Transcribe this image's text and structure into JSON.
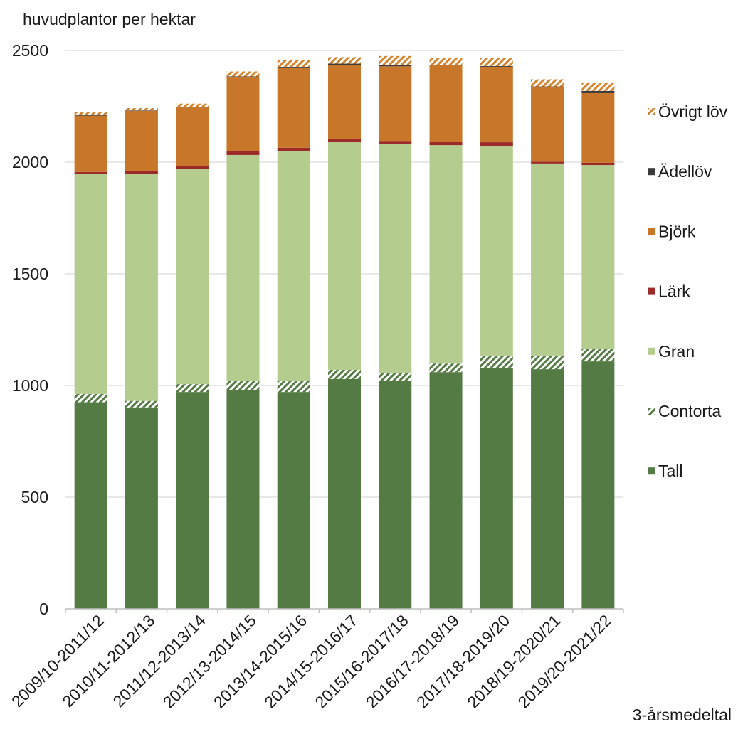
{
  "chart_data": {
    "type": "bar",
    "stacked": true,
    "ylabel": "huvudplantor per hektar",
    "xlabel": "3-årsmedeltal",
    "ylim": [
      0,
      2500
    ],
    "yticks": [
      0,
      500,
      1000,
      1500,
      2000,
      2500
    ],
    "grid": true,
    "legend_position": "right",
    "categories": [
      "2009/10-2011/12",
      "2010/11-2012/13",
      "2011/12-2013/14",
      "2012/13-2014/15",
      "2013/14-2015/16",
      "2014/15-2016/17",
      "2015/16-2017/18",
      "2016/17-2018/19",
      "2017/18-2019/20",
      "2018/19-2020/21",
      "2019/20-2021/22"
    ],
    "series": [
      {
        "name": "Tall",
        "color": "#557b45",
        "pattern": "solid",
        "values": [
          925,
          902,
          971,
          981,
          971,
          1029,
          1022,
          1060,
          1080,
          1073,
          1108
        ]
      },
      {
        "name": "Contorta",
        "color": "#557b45",
        "pattern": "hatched",
        "values": [
          37,
          29,
          35,
          41,
          48,
          41,
          35,
          38,
          54,
          61,
          57
        ]
      },
      {
        "name": "Gran",
        "color": "#b4cd8e",
        "pattern": "solid",
        "values": [
          984,
          1016,
          965,
          1010,
          1029,
          1019,
          1025,
          978,
          939,
          860,
          822
        ]
      },
      {
        "name": "Lärk",
        "color": "#9c2a28",
        "pattern": "solid",
        "values": [
          10,
          12,
          13,
          16,
          16,
          16,
          13,
          16,
          16,
          8,
          10
        ]
      },
      {
        "name": "Björk",
        "color": "#c8772a",
        "pattern": "solid",
        "values": [
          252,
          271,
          261,
          334,
          360,
          331,
          334,
          341,
          338,
          334,
          312
        ]
      },
      {
        "name": "Ädellöv",
        "color": "#3b3b3b",
        "pattern": "solid",
        "values": [
          3,
          2,
          2,
          2,
          3,
          5,
          5,
          3,
          3,
          3,
          10
        ]
      },
      {
        "name": "Övrigt löv",
        "color": "#d4832e",
        "pattern": "hatched",
        "values": [
          13,
          10,
          15,
          22,
          32,
          29,
          41,
          32,
          38,
          32,
          38
        ]
      }
    ]
  }
}
